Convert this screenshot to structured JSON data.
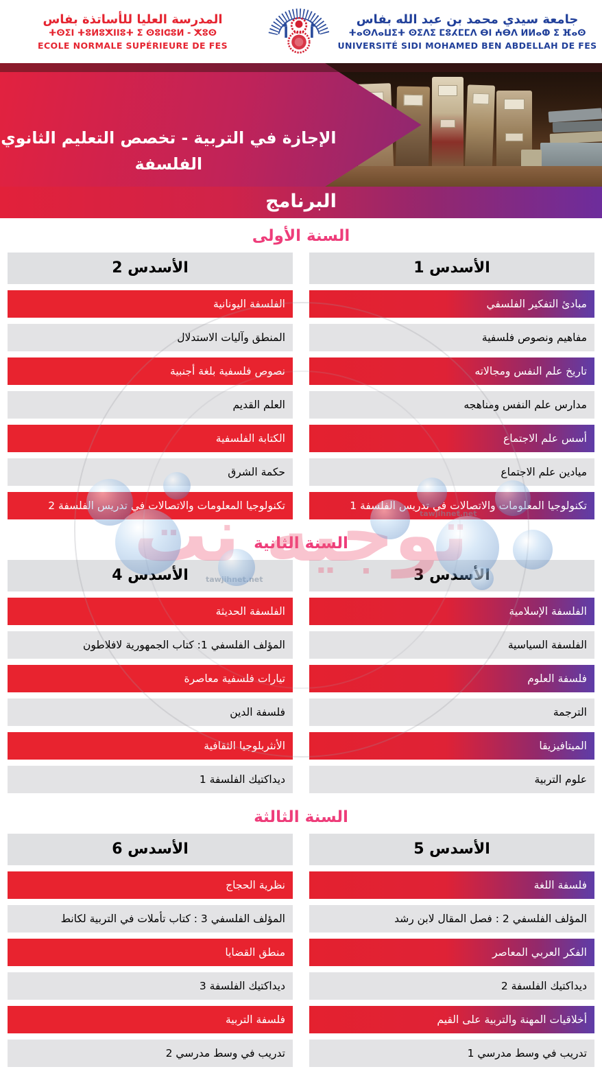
{
  "header": {
    "ens": {
      "arabic": "المدرسة العليا للأساتذة بفاس",
      "tifinagh": "ⵜⵙⵉⵏ ⵜⵓⵍⵓⵅⵏⵏⵓⵜ ⵉ ⵙⵓⵏⵛⵓⵍ - ⵅⵓⵙ",
      "french": "ECOLE NORMALE SUPÉRIEURE DE FES"
    },
    "university": {
      "arabic": "جامعة سيدي محمد بن عبد الله بفاس",
      "tifinagh": "ⵜⴰⵙⴷⴰⵡⵉⵜ ⵙⵉⴷⵉ ⵎⵓⵃⵎⵎⴷ ⴱⵏ ⵄⴱⴷ ⵍⵍⴰⵀ ⵉ ⴼⴰⵙ",
      "french": "UNIVERSITÉ SIDI MOHAMED BEN ABDELLAH DE FES"
    }
  },
  "banner": {
    "title_line1": "الإجازة في التربية - تخصص التعليم الثانوي",
    "title_line2": "الفلسفة",
    "program_label": "البرنامج"
  },
  "watermark": {
    "text": "توجيه نت",
    "site": "tawjihnet.net"
  },
  "years": [
    {
      "title": "السنة الأولى",
      "columns": [
        {
          "header": "الأسدس 1",
          "courses": [
            "مبادئ التفكير الفلسفي",
            "مفاهيم ونصوص فلسفية",
            "تاريخ علم النفس ومجالاته",
            "مدارس علم النفس ومناهجه",
            "أسس علم الاجتماع",
            "ميادين علم الاجتماع",
            "تكنولوجيا المعلومات والاتصالات في تدريس الفلسفة 1"
          ]
        },
        {
          "header": "الأسدس 2",
          "courses": [
            "الفلسفة اليونانية",
            "المنطق وآليات الاستدلال",
            "نصوص فلسفية بلغة أجنبية",
            "العلم القديم",
            "الكتابة الفلسفية",
            "حكمة الشرق",
            "تكنولوجيا المعلومات والاتصالات في تدريس الفلسفة 2"
          ]
        }
      ]
    },
    {
      "title": "السنة الثانية",
      "columns": [
        {
          "header": "الأسدس 3",
          "courses": [
            "الفلسفة الإسلامية",
            "الفلسفة السياسية",
            "فلسفة العلوم",
            "الترجمة",
            "الميتافيزيقا",
            "علوم التربية"
          ]
        },
        {
          "header": "الأسدس 4",
          "courses": [
            "الفلسفة الحديثة",
            "المؤلف الفلسفي 1: كتاب الجمهورية لافلاطون",
            "تيارات فلسفية معاصرة",
            "فلسفة الدين",
            "الأنثربلوجيا الثقافية",
            "ديداكتيك الفلسفة 1"
          ]
        }
      ]
    },
    {
      "title": "السنة الثالثة",
      "columns": [
        {
          "header": "الأسدس 5",
          "courses": [
            "فلسفة اللغة",
            "المؤلف الفلسفي 2 : فصل المقال لابن رشد",
            "الفكر العربي المعاصر",
            "ديداكتيك الفلسفة 2",
            "أخلاقيات المهنة والتربية على القيم",
            "تدريب في وسط مدرسي 1"
          ]
        },
        {
          "header": "الأسدس 6",
          "courses": [
            "نظرية الحجاج",
            "المؤلف الفلسفي 3 : كتاب تأملات في التربية لكانط",
            "منطق القضايا",
            "ديداكتيك الفلسفة 3",
            "فلسفة التربية",
            "تدريب في وسط مدرسي 2"
          ]
        }
      ]
    }
  ],
  "colors": {
    "ens_red": "#e52531",
    "university_blue": "#21409a",
    "row_red": "#e8232f",
    "row_purple": "#5e3da8",
    "row_gray": "#e3e3e5",
    "year_title_pink": "#ee3d7a",
    "banner_gradient_left": "#e2223f",
    "banner_gradient_right": "#6e2ba0"
  }
}
